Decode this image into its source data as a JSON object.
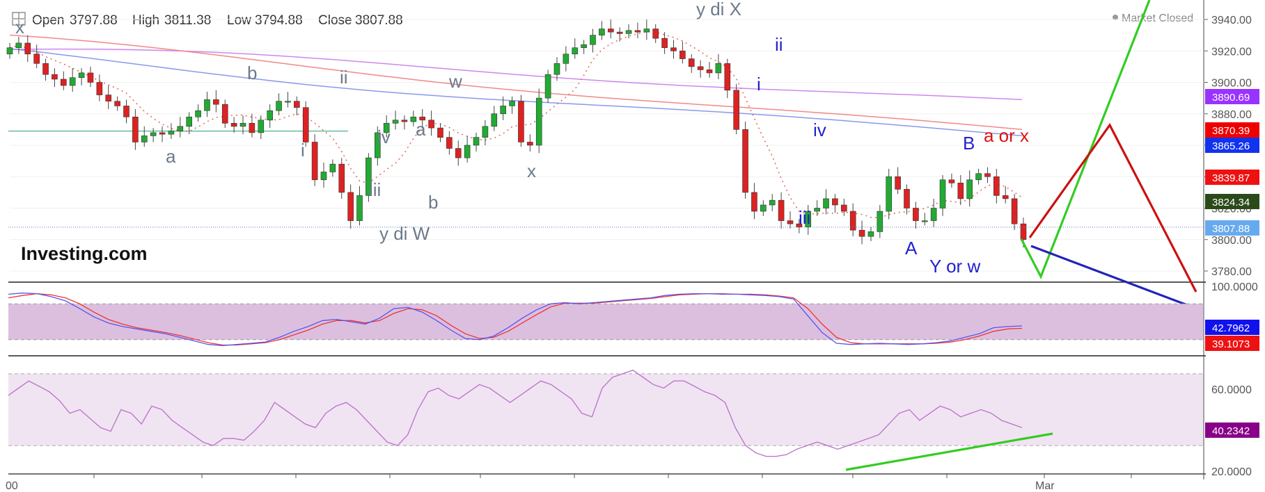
{
  "header": {
    "open_label": "Open",
    "open": "3797.88",
    "high_label": "High",
    "high": "3811.38",
    "low_label": "Low",
    "low": "3794.88",
    "close_label": "Close",
    "close": "3807.88"
  },
  "market_status": "Market Closed",
  "logo": "Investing.com",
  "x_axis": {
    "first_label": "00",
    "month_label": "Mar"
  },
  "chart_data": [
    {
      "type": "line",
      "name": "price-panel",
      "y_ticks": [
        "3940.00",
        "3920.00",
        "3900.00",
        "3880.00",
        "3860.00",
        "3840.00",
        "3820.00",
        "3800.00",
        "3780.00"
      ],
      "ylim": [
        3770,
        3945
      ],
      "close_series": [
        3922,
        3925,
        3918,
        3912,
        3905,
        3902,
        3898,
        3903,
        3906,
        3900,
        3892,
        3888,
        3885,
        3878,
        3862,
        3866,
        3868,
        3867,
        3869,
        3872,
        3878,
        3882,
        3889,
        3886,
        3874,
        3872,
        3874,
        3868,
        3876,
        3882,
        3888,
        3888,
        3884,
        3862,
        3838,
        3843,
        3848,
        3830,
        3812,
        3828,
        3852,
        3868,
        3874,
        3876,
        3875,
        3878,
        3876,
        3871,
        3865,
        3858,
        3852,
        3860,
        3865,
        3872,
        3880,
        3885,
        3888,
        3862,
        3860,
        3890,
        3905,
        3912,
        3918,
        3922,
        3924,
        3930,
        3934,
        3932,
        3931,
        3933,
        3932,
        3934,
        3928,
        3922,
        3920,
        3915,
        3910,
        3908,
        3906,
        3912,
        3895,
        3870,
        3830,
        3818,
        3822,
        3825,
        3812,
        3810,
        3808,
        3818,
        3820,
        3826,
        3822,
        3818,
        3806,
        3802,
        3805,
        3818,
        3840,
        3832,
        3820,
        3812,
        3812,
        3820,
        3838,
        3836,
        3826,
        3838,
        3842,
        3840,
        3828,
        3826,
        3810,
        3800
      ],
      "moving_averages": [
        {
          "color": "#cc88ee",
          "from": 3921,
          "to": 3889
        },
        {
          "color": "#f28888",
          "from": 3925,
          "to": 3870
        },
        {
          "color": "#8899ee",
          "from": 3916,
          "to": 3866
        }
      ],
      "horizontal_line": 3869,
      "last_price_line": 3807.88,
      "price_badges": [
        {
          "value": "3890.69",
          "color": "#9933ff"
        },
        {
          "value": "3870.39",
          "color": "#ee0000"
        },
        {
          "value": "3865.26",
          "color": "#1133ee"
        },
        {
          "value": "3839.87",
          "color": "#ee1111"
        },
        {
          "value": "3824.34",
          "color": "#2a4a1a"
        },
        {
          "value": "3807.88",
          "color": "#66aaee"
        }
      ],
      "wave_labels": [
        {
          "text": "x",
          "color": "gray"
        },
        {
          "text": "a",
          "color": "gray"
        },
        {
          "text": "b",
          "color": "gray"
        },
        {
          "text": "i",
          "color": "gray"
        },
        {
          "text": "ii",
          "color": "gray"
        },
        {
          "text": "iv",
          "color": "gray"
        },
        {
          "text": "iii",
          "color": "gray"
        },
        {
          "text": "a",
          "color": "gray"
        },
        {
          "text": "b",
          "color": "gray"
        },
        {
          "text": "y di W",
          "color": "gray"
        },
        {
          "text": "w",
          "color": "gray"
        },
        {
          "text": "x",
          "color": "gray"
        },
        {
          "text": "y di X",
          "color": "gray"
        },
        {
          "text": "ii",
          "color": "blue"
        },
        {
          "text": "i",
          "color": "blue"
        },
        {
          "text": "iv",
          "color": "blue"
        },
        {
          "text": "iii",
          "color": "blue"
        },
        {
          "text": "A",
          "color": "blue"
        },
        {
          "text": "B",
          "color": "blue"
        },
        {
          "text": "Y or w",
          "color": "blue"
        },
        {
          "text": "a or x",
          "color": "red"
        }
      ]
    },
    {
      "type": "line",
      "name": "stochastic-panel",
      "y_ticks": [
        "100.0000"
      ],
      "ylim": [
        0,
        100
      ],
      "band": [
        20,
        80
      ],
      "badges": [
        {
          "value": "42.7962",
          "color": "#1111ee"
        },
        {
          "value": "39.1073",
          "color": "#ee1111"
        }
      ],
      "k_line": [
        96,
        98,
        97,
        92,
        85,
        72,
        58,
        48,
        42,
        38,
        34,
        30,
        24,
        18,
        12,
        10,
        12,
        14,
        16,
        24,
        34,
        42,
        52,
        54,
        50,
        46,
        56,
        72,
        74,
        66,
        52,
        36,
        22,
        20,
        26,
        40,
        56,
        70,
        80,
        82,
        80,
        82,
        84,
        86,
        88,
        90,
        94,
        96,
        97,
        97,
        96,
        96,
        95,
        94,
        92,
        88,
        60,
        32,
        14,
        12,
        13,
        14,
        13,
        12,
        13,
        15,
        18,
        24,
        30,
        40,
        42,
        43
      ],
      "d_line": [
        90,
        94,
        97,
        95,
        90,
        80,
        66,
        54,
        46,
        40,
        36,
        32,
        27,
        21,
        15,
        11,
        11,
        13,
        15,
        20,
        28,
        36,
        46,
        52,
        52,
        48,
        52,
        64,
        72,
        70,
        60,
        44,
        30,
        22,
        24,
        34,
        48,
        62,
        75,
        81,
        81,
        81,
        83,
        85,
        87,
        89,
        92,
        95,
        96,
        97,
        97,
        96,
        96,
        95,
        93,
        90,
        72,
        46,
        24,
        15,
        13,
        13,
        13,
        13,
        13,
        14,
        16,
        20,
        26,
        34,
        38,
        39
      ]
    },
    {
      "type": "line",
      "name": "rsi-panel",
      "y_ticks": [
        "60.0000",
        "20.0000"
      ],
      "ylim": [
        15,
        80
      ],
      "band": [
        30,
        70
      ],
      "badge": {
        "value": "40.2342",
        "color": "#880088"
      },
      "values": [
        58,
        62,
        66,
        63,
        60,
        55,
        48,
        50,
        45,
        40,
        38,
        50,
        48,
        42,
        52,
        50,
        44,
        40,
        36,
        32,
        30,
        34,
        34,
        33,
        38,
        44,
        54,
        50,
        46,
        42,
        40,
        48,
        52,
        54,
        50,
        44,
        38,
        32,
        30,
        36,
        50,
        60,
        62,
        58,
        56,
        60,
        64,
        62,
        58,
        54,
        58,
        62,
        66,
        64,
        60,
        56,
        48,
        46,
        62,
        68,
        70,
        72,
        68,
        64,
        62,
        66,
        66,
        63,
        60,
        58,
        54,
        40,
        30,
        26,
        24,
        24,
        25,
        28,
        30,
        32,
        30,
        28,
        30,
        32,
        34,
        36,
        42,
        48,
        50,
        44,
        48,
        52,
        50,
        46,
        48,
        50,
        48,
        44,
        42,
        40
      ]
    }
  ]
}
